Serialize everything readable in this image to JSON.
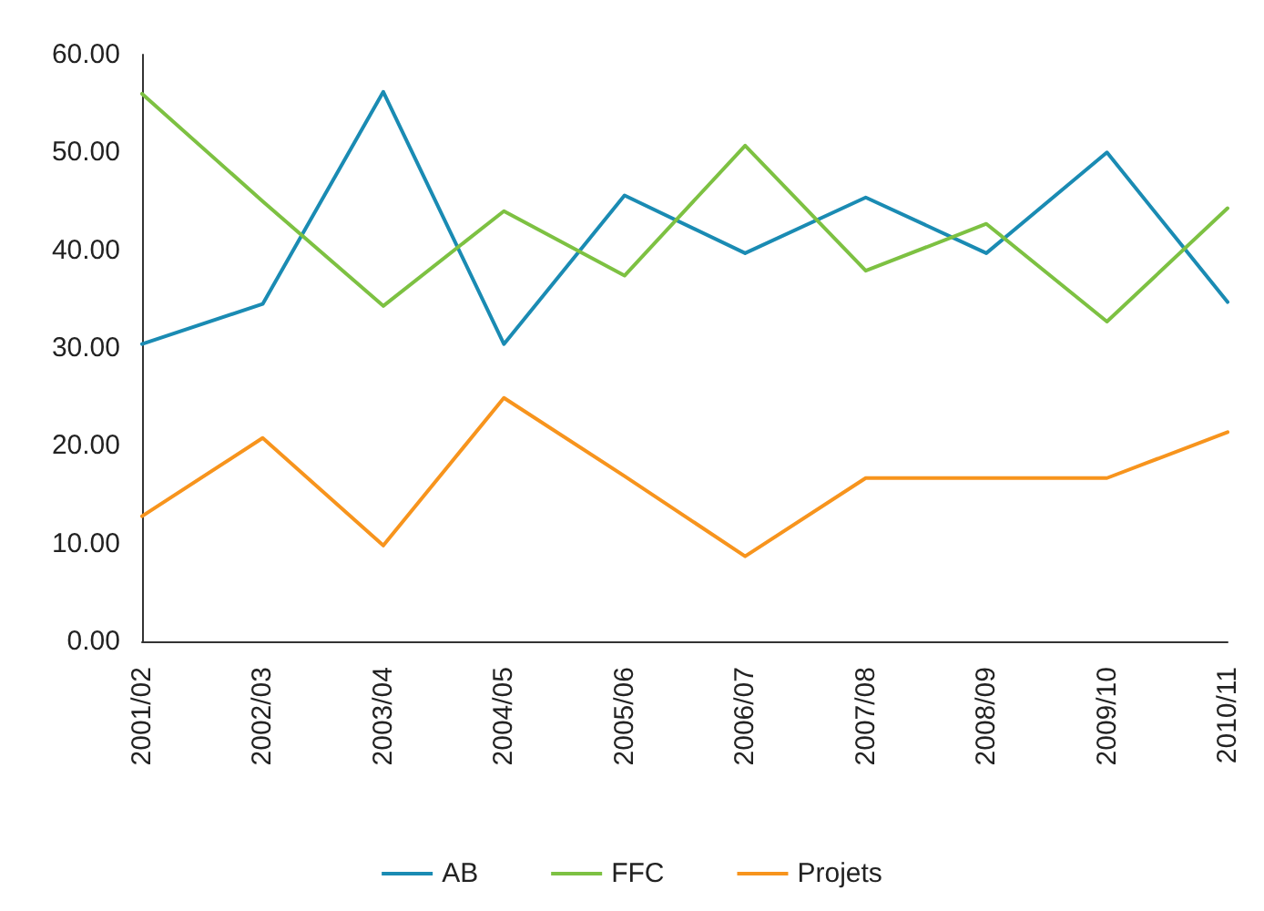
{
  "chart_data": {
    "type": "line",
    "categories": [
      "2001/02",
      "2002/03",
      "2003/04",
      "2004/05",
      "2005/06",
      "2006/07",
      "2007/08",
      "2008/09",
      "2009/10",
      "2010/11"
    ],
    "series": [
      {
        "name": "AB",
        "color": "#1a8bb3",
        "values": [
          30.4,
          34.5,
          56.2,
          30.4,
          45.6,
          39.7,
          45.4,
          39.7,
          50.0,
          34.7
        ]
      },
      {
        "name": "FFC",
        "color": "#7dc142",
        "values": [
          56.0,
          45.0,
          34.3,
          44.0,
          37.4,
          50.7,
          37.9,
          42.7,
          32.7,
          44.3
        ]
      },
      {
        "name": "Projets",
        "color": "#f7941d",
        "values": [
          12.8,
          20.8,
          9.8,
          24.9,
          16.9,
          8.7,
          16.7,
          16.7,
          16.7,
          21.4
        ]
      }
    ],
    "ylim": [
      0,
      60
    ],
    "yticks": [
      {
        "value": 0,
        "label": "0.00"
      },
      {
        "value": 10,
        "label": "10.00"
      },
      {
        "value": 20,
        "label": "20.00"
      },
      {
        "value": 30,
        "label": "30.00"
      },
      {
        "value": 40,
        "label": "40.00"
      },
      {
        "value": 50,
        "label": "50.00"
      },
      {
        "value": 60,
        "label": "60.00"
      }
    ],
    "grid": false,
    "legend": "bottom",
    "marker": "none",
    "line_style": "solid"
  }
}
